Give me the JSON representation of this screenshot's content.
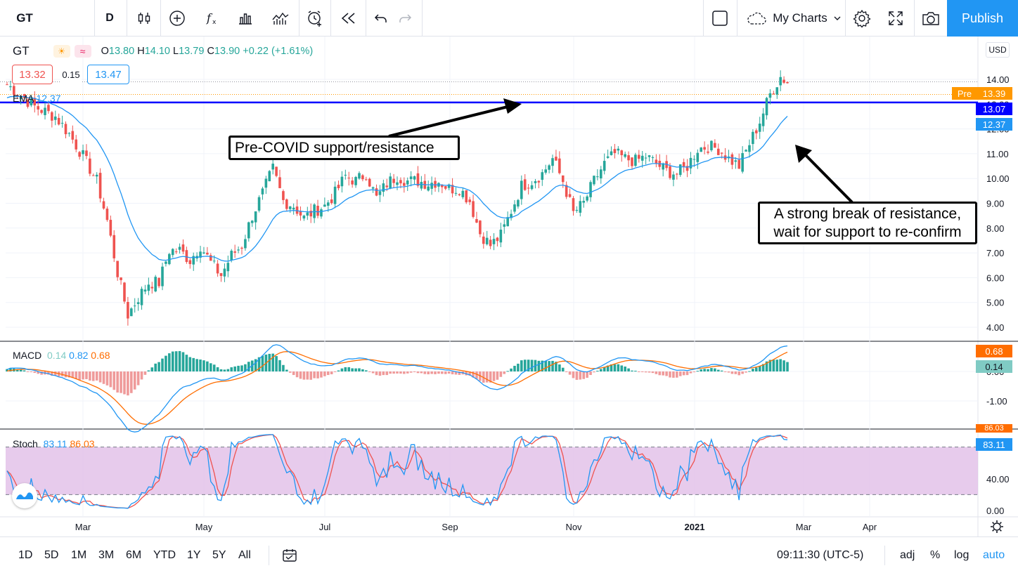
{
  "toolbar": {
    "symbol": "GT",
    "interval": "D",
    "my_charts": "My Charts",
    "publish": "Publish",
    "icons": [
      "candles-icon",
      "add-indicator-icon",
      "fx-icon",
      "bar-chart-icon",
      "templates-icon",
      "alert-icon",
      "replay-icon",
      "undo-icon",
      "redo-icon",
      "layout-icon",
      "cloud-icon",
      "chevron-down-icon",
      "gear-icon",
      "fullscreen-icon",
      "camera-icon"
    ]
  },
  "legend": {
    "symbol": "GT",
    "o_label": "O",
    "o": "13.80",
    "h_label": "H",
    "h": "14.10",
    "l_label": "L",
    "l": "13.79",
    "c_label": "C",
    "c": "13.90",
    "change": "+0.22 (+1.61%)",
    "bid": "13.32",
    "spread": "0.15",
    "ask": "13.47",
    "ema_name": "EMA",
    "ema_value": "12.37"
  },
  "macd_legend": {
    "name": "MACD",
    "hist": "0.14",
    "macd": "0.82",
    "signal": "0.68"
  },
  "stoch_legend": {
    "name": "Stoch",
    "k": "83.11",
    "d": "86.03"
  },
  "annotations": {
    "a1": "Pre-COVID support/resistance",
    "a2_line1": "A strong break of resistance,",
    "a2_line2": "wait for support to re-confirm"
  },
  "price_axis": {
    "currency": "USD",
    "ticks": [
      "14.00",
      "13.00",
      "12.00",
      "11.00",
      "10.00",
      "9.00",
      "8.00",
      "7.00",
      "6.00",
      "5.00",
      "4.00"
    ],
    "pre_label": "Pre",
    "tag_pre": "13.39",
    "tag_level": "13.07",
    "tag_ema": "12.37",
    "macd_ticks": [
      "0.00",
      "-1.00"
    ],
    "tag_macd": "0.68",
    "tag_hist": "0.14",
    "stoch_ticks": [
      "40.00",
      "0.00"
    ],
    "tag_stoch_d": "86.03",
    "tag_stoch_k": "83.11"
  },
  "time_axis": [
    "Mar",
    "May",
    "Jul",
    "Sep",
    "Nov",
    "2021",
    "Mar",
    "Apr"
  ],
  "bottom": {
    "ranges": [
      "1D",
      "5D",
      "1M",
      "3M",
      "6M",
      "YTD",
      "1Y",
      "5Y",
      "All"
    ],
    "clock": "09:11:30 (UTC-5)",
    "adj": "adj",
    "pct": "%",
    "log": "log",
    "auto": "auto"
  },
  "colors": {
    "up": "#26a69a",
    "down": "#ef5350",
    "ema": "#2196f3",
    "level": "#0000ff",
    "macd": "#2196f3",
    "signal": "#ff6d00",
    "stoch_k": "#2196f3",
    "stoch_d": "#ef5350",
    "stoch_band": "#e1bee7",
    "publish": "#2196f3"
  },
  "chart_data": {
    "type": "candlestick",
    "symbol": "GT",
    "interval": "D",
    "y_range": [
      3.6,
      14.8
    ],
    "horizontal_level": 13.07,
    "x_labels": [
      "Mar",
      "May",
      "Jul",
      "Sep",
      "Nov",
      "2021",
      "Mar",
      "Apr"
    ],
    "close_path": [
      [
        0,
        13.8
      ],
      [
        8,
        12.9
      ],
      [
        14,
        12.5
      ],
      [
        18,
        11.8
      ],
      [
        22,
        10.9
      ],
      [
        26,
        9.9
      ],
      [
        29,
        8.3
      ],
      [
        32,
        6.2
      ],
      [
        35,
        4.5
      ],
      [
        38,
        5.2
      ],
      [
        41,
        5.8
      ],
      [
        44,
        5.8
      ],
      [
        47,
        7.1
      ],
      [
        50,
        7.1
      ],
      [
        53,
        6.7
      ],
      [
        56,
        7.3
      ],
      [
        59,
        6.6
      ],
      [
        62,
        6.1
      ],
      [
        65,
        6.9
      ],
      [
        68,
        7.3
      ],
      [
        71,
        8.5
      ],
      [
        74,
        9.4
      ],
      [
        77,
        10.4
      ],
      [
        80,
        9.1
      ],
      [
        83,
        8.9
      ],
      [
        86,
        8.4
      ],
      [
        89,
        8.7
      ],
      [
        92,
        8.9
      ],
      [
        95,
        9.4
      ],
      [
        98,
        10.1
      ],
      [
        101,
        9.9
      ],
      [
        104,
        10.2
      ],
      [
        107,
        9.2
      ],
      [
        110,
        9.8
      ],
      [
        113,
        10.1
      ],
      [
        116,
        9.9
      ],
      [
        119,
        9.9
      ],
      [
        122,
        9.8
      ],
      [
        125,
        9.9
      ],
      [
        128,
        9.6
      ],
      [
        131,
        9.6
      ],
      [
        134,
        9.1
      ],
      [
        137,
        7.8
      ],
      [
        140,
        7.3
      ],
      [
        143,
        7.7
      ],
      [
        146,
        8.7
      ],
      [
        149,
        9.7
      ],
      [
        152,
        9.9
      ],
      [
        155,
        10.2
      ],
      [
        158,
        10.8
      ],
      [
        161,
        9.9
      ],
      [
        164,
        8.6
      ],
      [
        167,
        9.0
      ],
      [
        170,
        9.9
      ],
      [
        173,
        10.6
      ],
      [
        176,
        11.0
      ],
      [
        179,
        10.8
      ],
      [
        182,
        10.7
      ],
      [
        185,
        10.9
      ],
      [
        188,
        10.6
      ],
      [
        191,
        10.3
      ],
      [
        194,
        10.2
      ],
      [
        197,
        10.5
      ],
      [
        200,
        11.2
      ],
      [
        203,
        11.3
      ],
      [
        206,
        11.2
      ],
      [
        209,
        10.8
      ],
      [
        212,
        10.5
      ],
      [
        215,
        11.4
      ],
      [
        218,
        12.3
      ],
      [
        221,
        13.4
      ],
      [
        224,
        14.1
      ],
      [
        226,
        13.9
      ]
    ],
    "ema_last": 12.37,
    "macd": {
      "hist_last": 0.14,
      "macd_last": 0.82,
      "signal_last": 0.68,
      "y_range": [
        -2.0,
        1.2
      ]
    },
    "stoch": {
      "k_last": 83.11,
      "d_last": 86.03,
      "upper": 80,
      "lower": 20,
      "y_range": [
        -5,
        100
      ]
    }
  }
}
